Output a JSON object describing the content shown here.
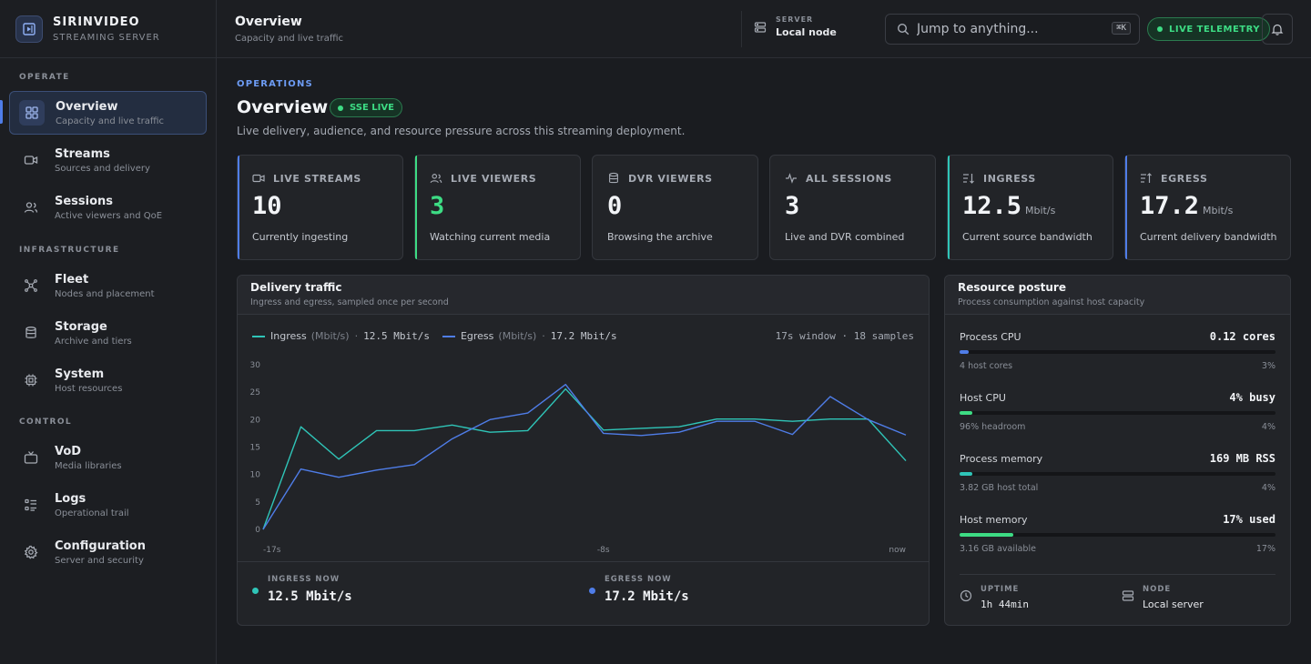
{
  "brand": {
    "name": "SIRINVIDEO",
    "subtitle": "STREAMING SERVER"
  },
  "sidebar": {
    "sections": [
      {
        "title": "OPERATE",
        "items": [
          {
            "id": "overview",
            "label": "Overview",
            "sub": "Capacity and live traffic",
            "icon": "grid-icon",
            "active": true
          },
          {
            "id": "streams",
            "label": "Streams",
            "sub": "Sources and delivery",
            "icon": "video-icon"
          },
          {
            "id": "sessions",
            "label": "Sessions",
            "sub": "Active viewers and QoE",
            "icon": "users-icon"
          }
        ]
      },
      {
        "title": "INFRASTRUCTURE",
        "items": [
          {
            "id": "fleet",
            "label": "Fleet",
            "sub": "Nodes and placement",
            "icon": "network-icon"
          },
          {
            "id": "storage",
            "label": "Storage",
            "sub": "Archive and tiers",
            "icon": "database-icon"
          },
          {
            "id": "system",
            "label": "System",
            "sub": "Host resources",
            "icon": "chip-icon"
          }
        ]
      },
      {
        "title": "CONTROL",
        "items": [
          {
            "id": "vod",
            "label": "VoD",
            "sub": "Media libraries",
            "icon": "tv-icon"
          },
          {
            "id": "logs",
            "label": "Logs",
            "sub": "Operational trail",
            "icon": "list-icon"
          },
          {
            "id": "configuration",
            "label": "Configuration",
            "sub": "Server and security",
            "icon": "gear-icon"
          }
        ]
      }
    ]
  },
  "header": {
    "title": "Overview",
    "subtitle": "Capacity and live traffic",
    "server_label": "SERVER",
    "server_value": "Local node",
    "search_placeholder": "Jump to anything...",
    "search_shortcut": "⌘K",
    "telemetry_label": "LIVE TELEMETRY"
  },
  "page": {
    "eyebrow": "OPERATIONS",
    "title": "Overview",
    "badge": "SSE LIVE",
    "description": "Live delivery, audience, and resource pressure across this streaming deployment."
  },
  "stats": [
    {
      "label": "LIVE STREAMS",
      "value": "10",
      "unit": "",
      "desc": "Currently ingesting",
      "icon": "camera-icon",
      "accent": "#4f7de8",
      "value_color": "#f2f4f7"
    },
    {
      "label": "LIVE VIEWERS",
      "value": "3",
      "unit": "",
      "desc": "Watching current media",
      "icon": "users-icon",
      "accent": "#3ddc84",
      "value_color": "#3ddc84"
    },
    {
      "label": "DVR VIEWERS",
      "value": "0",
      "unit": "",
      "desc": "Browsing the archive",
      "icon": "database-icon",
      "accent": "",
      "value_color": "#f2f4f7"
    },
    {
      "label": "ALL SESSIONS",
      "value": "3",
      "unit": "",
      "desc": "Live and DVR combined",
      "icon": "pulse-icon",
      "accent": "",
      "value_color": "#f2f4f7"
    },
    {
      "label": "INGRESS",
      "value": "12.5",
      "unit": "Mbit/s",
      "desc": "Current source bandwidth",
      "icon": "sort-down-icon",
      "accent": "#2fc5b8",
      "value_color": "#f2f4f7"
    },
    {
      "label": "EGRESS",
      "value": "17.2",
      "unit": "Mbit/s",
      "desc": "Current delivery bandwidth",
      "icon": "sort-up-icon",
      "accent": "#4f7de8",
      "value_color": "#f2f4f7"
    }
  ],
  "traffic": {
    "title": "Delivery traffic",
    "subtitle": "Ingress and egress, sampled once per second",
    "legend": [
      {
        "name": "Ingress",
        "unit": "(Mbit/s)",
        "value": "12.5 Mbit/s",
        "color": "#2fc5b8"
      },
      {
        "name": "Egress",
        "unit": "(Mbit/s)",
        "value": "17.2 Mbit/s",
        "color": "#4f7de8"
      }
    ],
    "window_info": "17s window · 18 samples",
    "now": [
      {
        "label": "INGRESS NOW",
        "value": "12.5 Mbit/s",
        "color": "#2fc5b8"
      },
      {
        "label": "EGRESS NOW",
        "value": "17.2 Mbit/s",
        "color": "#4f7de8"
      }
    ]
  },
  "chart_data": {
    "type": "line",
    "x": [
      -17,
      -16,
      -15,
      -14,
      -13,
      -12,
      -11,
      -10,
      -9,
      -8,
      -7,
      -6,
      -5,
      -4,
      -3,
      -2,
      -1,
      0
    ],
    "x_tick_labels": [
      "-17s",
      "-8s",
      "now"
    ],
    "x_tick_positions": [
      -17,
      -8,
      0
    ],
    "ylim": [
      0,
      30
    ],
    "y_ticks": [
      0,
      5,
      10,
      15,
      20,
      25,
      30
    ],
    "grid": false,
    "series": [
      {
        "name": "Ingress",
        "color": "#2fc5b8",
        "values": [
          0,
          18.7,
          12.8,
          18,
          18,
          19,
          17.7,
          18,
          25.6,
          18.1,
          18.4,
          18.7,
          20.1,
          20.1,
          19.7,
          20.1,
          20.1,
          12.5
        ]
      },
      {
        "name": "Egress",
        "color": "#4f7de8",
        "values": [
          0,
          11,
          9.5,
          10.8,
          11.8,
          16.5,
          20,
          21.2,
          26.4,
          17.5,
          17.1,
          17.7,
          19.7,
          19.7,
          17.3,
          24.2,
          20,
          17.2
        ]
      }
    ]
  },
  "resources": {
    "title": "Resource posture",
    "subtitle": "Process consumption against host capacity",
    "items": [
      {
        "name": "Process CPU",
        "value": "0.12 cores",
        "detail": "4 host cores",
        "percent_label": "3%",
        "percent": 3,
        "color": "#4f7de8"
      },
      {
        "name": "Host CPU",
        "value": "4% busy",
        "detail": "96% headroom",
        "percent_label": "4%",
        "percent": 4,
        "color": "#3ddc84"
      },
      {
        "name": "Process memory",
        "value": "169 MB RSS",
        "detail": "3.82 GB host total",
        "percent_label": "4%",
        "percent": 4,
        "color": "#2fc5b8"
      },
      {
        "name": "Host memory",
        "value": "17% used",
        "detail": "3.16 GB available",
        "percent_label": "17%",
        "percent": 17,
        "color": "#3ddc84"
      }
    ],
    "uptime_label": "UPTIME",
    "uptime_value": "1h 44min",
    "node_label": "NODE",
    "node_value": "Local server"
  }
}
